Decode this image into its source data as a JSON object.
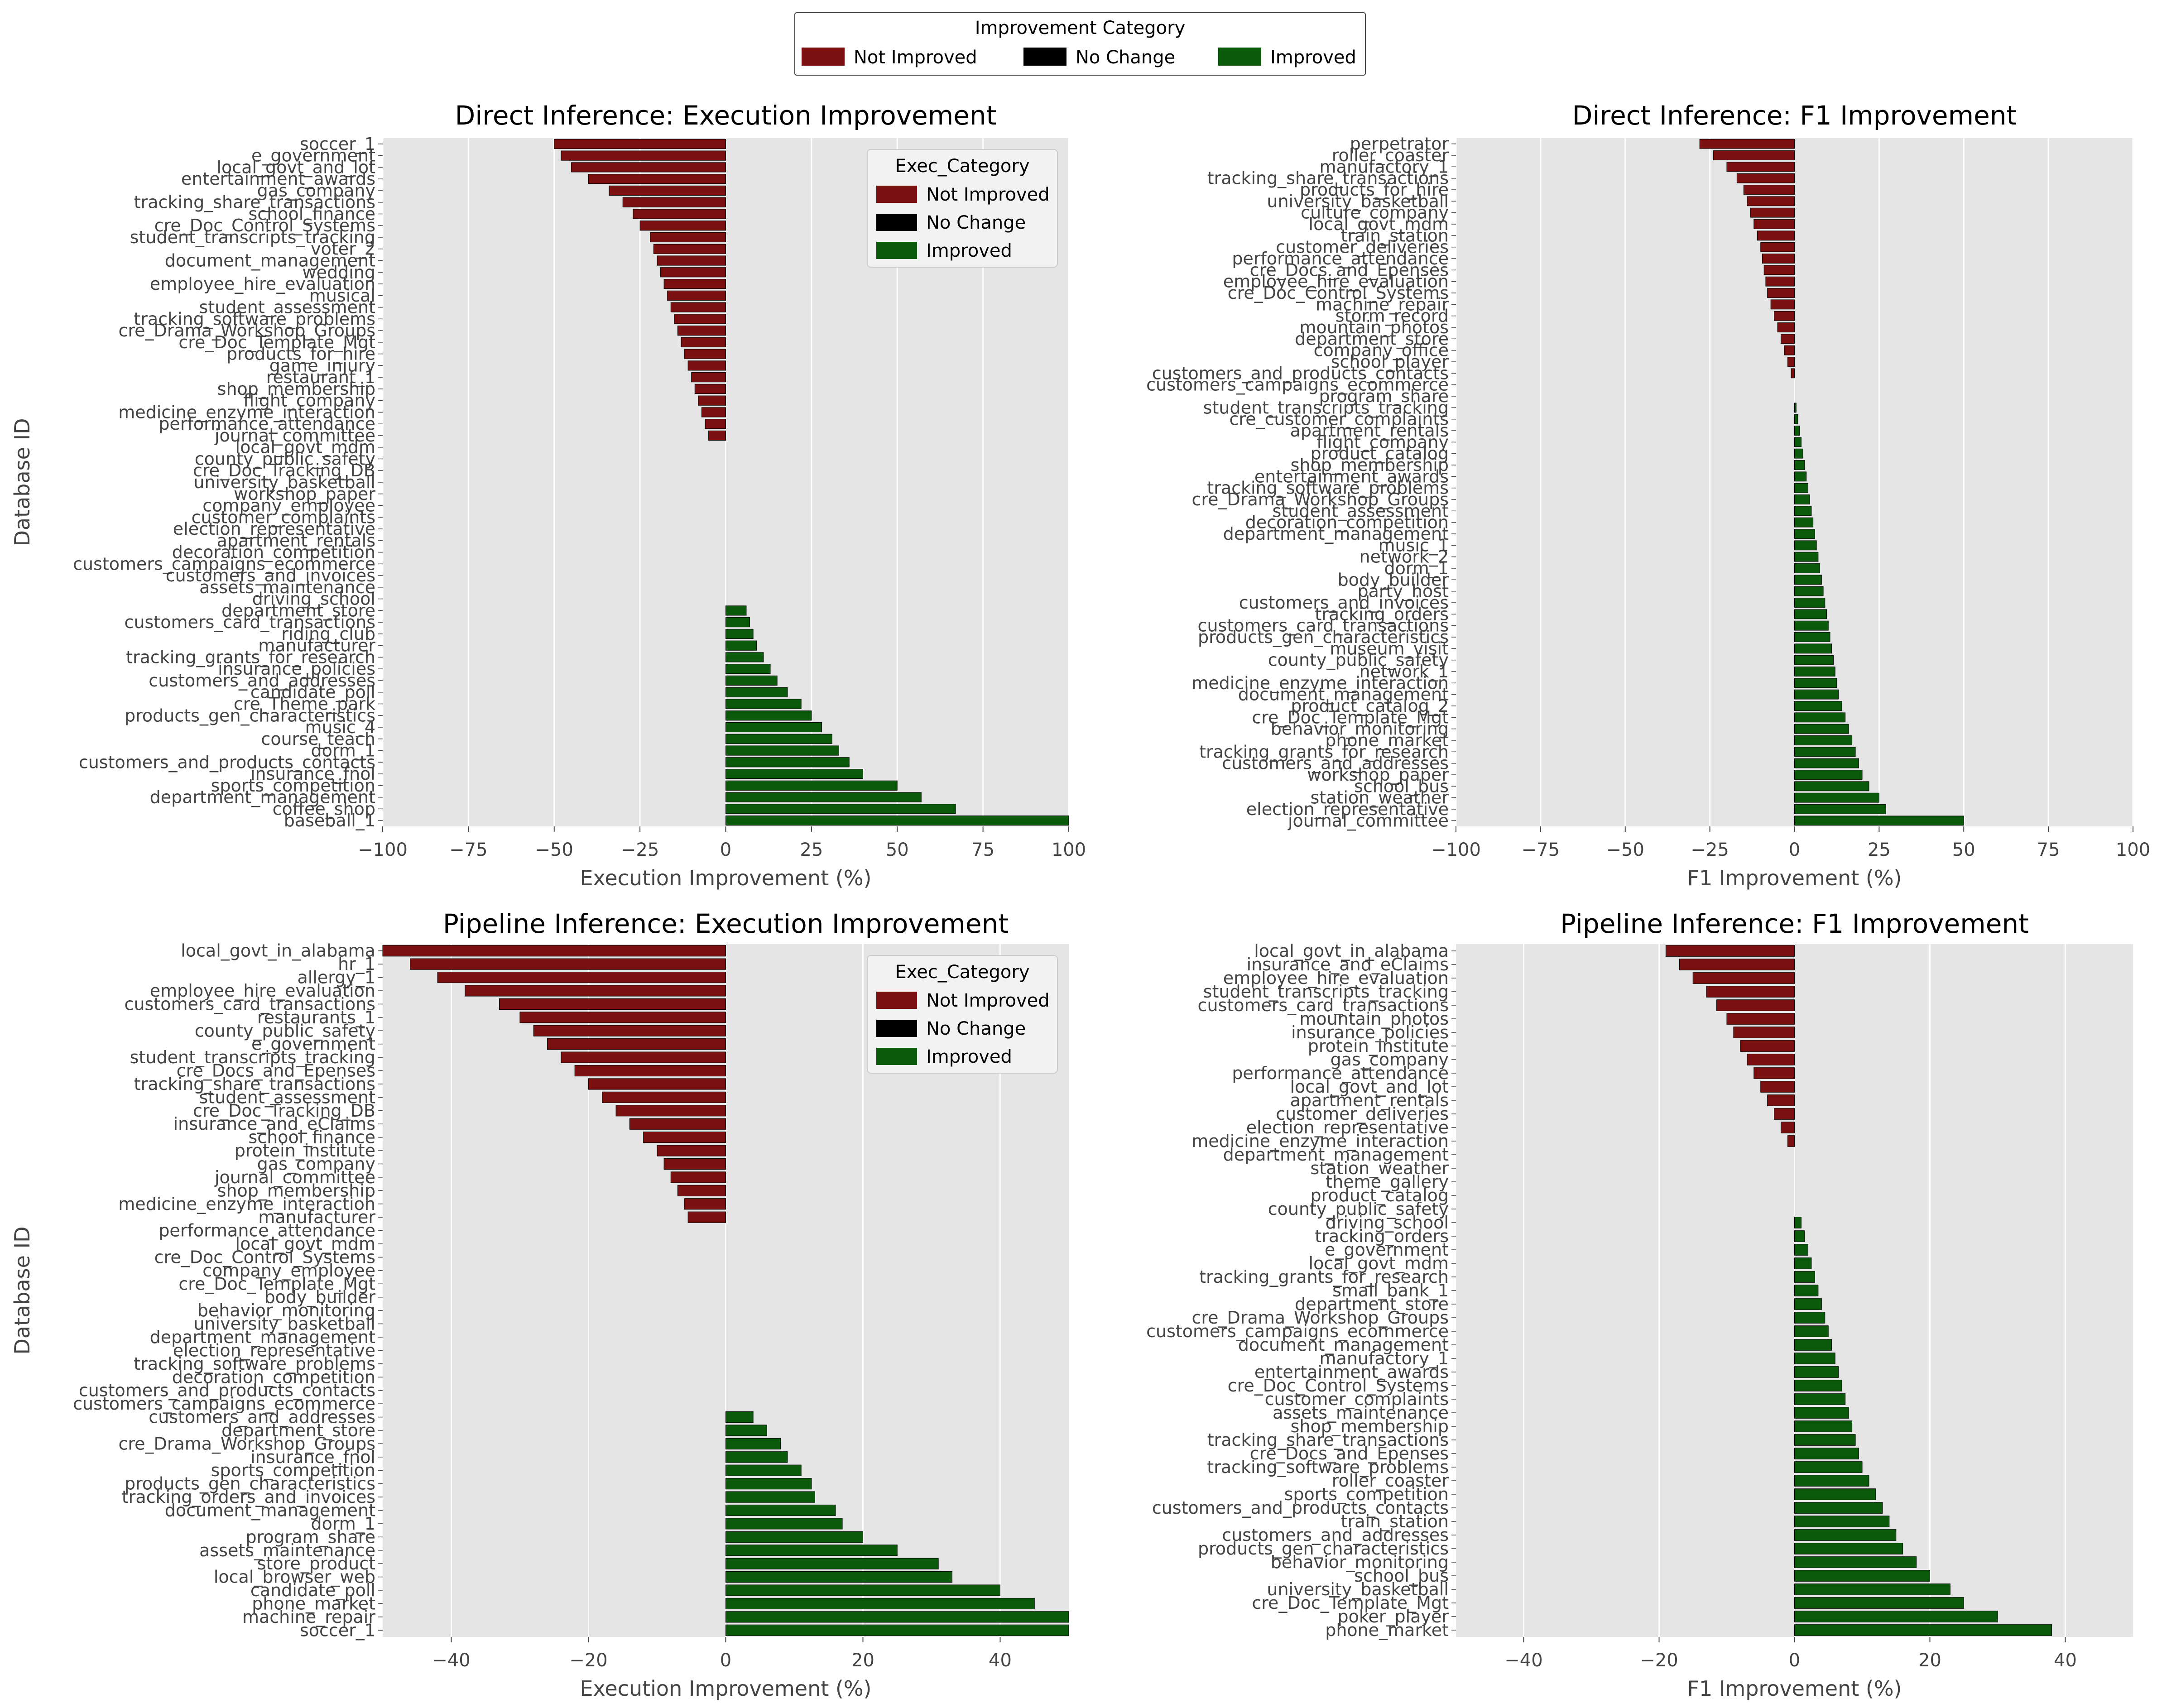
{
  "legend": {
    "title": "Improvement Category",
    "entries": [
      {
        "label": "Not Improved",
        "color": "#7a1010"
      },
      {
        "label": "No Change",
        "color": "#000000"
      },
      {
        "label": "Improved",
        "color": "#0b5a0b"
      }
    ]
  },
  "inset_legend": {
    "title": "Exec_Category",
    "entries": [
      {
        "label": "Not Improved",
        "color": "#7a1010"
      },
      {
        "label": "No Change",
        "color": "#000000"
      },
      {
        "label": "Improved",
        "color": "#0b5a0b"
      }
    ]
  },
  "colors": {
    "not_improved": "#7a1010",
    "no_change": "#000000",
    "improved": "#0b5a0b",
    "plot_bg": "#e5e5e5",
    "grid": "#ffffff",
    "text": "#444444"
  },
  "chart_data": [
    {
      "type": "bar",
      "orientation": "horizontal",
      "title": "Direct Inference: Execution Improvement",
      "xlabel": "Execution Improvement (%)",
      "ylabel": "Database ID",
      "xlim": [
        -100,
        100
      ],
      "xticks": [
        "−100",
        "−75",
        "−50",
        "−25",
        "0",
        "25",
        "50",
        "75",
        "100"
      ],
      "xtick_values": [
        -100,
        -75,
        -50,
        -25,
        0,
        25,
        50,
        75,
        100
      ],
      "grid": true,
      "legend": "inset top-right",
      "categories": [
        "soccer_1",
        "e_government",
        "local_govt_and_lot",
        "entertainment_awards",
        "gas_company",
        "tracking_share_transactions",
        "school_finance",
        "cre_Doc_Control_Systems",
        "student_transcripts_tracking",
        "voter_2",
        "document_management",
        "wedding",
        "employee_hire_evaluation",
        "musical",
        "student_assessment",
        "tracking_software_problems",
        "cre_Drama_Workshop_Groups",
        "cre_Doc_Template_Mgt",
        "products_for_hire",
        "game_injury",
        "restaurant_1",
        "shop_membership",
        "flight_company",
        "medicine_enzyme_interaction",
        "performance_attendance",
        "journal_committee",
        "local_govt_mdm",
        "county_public_safety",
        "cre_Doc_Tracking_DB",
        "university_basketball",
        "workshop_paper",
        "company_employee",
        "customer_complaints",
        "election_representative",
        "apartment_rentals",
        "decoration_competition",
        "customers_campaigns_ecommerce",
        "customers_and_invoices",
        "assets_maintenance",
        "driving_school",
        "department_store",
        "customers_card_transactions",
        "riding_club",
        "manufacturer",
        "tracking_grants_for_research",
        "insurance_policies",
        "customers_and_addresses",
        "candidate_poll",
        "cre_Theme_park",
        "products_gen_characteristics",
        "music_4",
        "course_teach",
        "dorm_1",
        "customers_and_products_contacts",
        "insurance_fnol",
        "sports_competition",
        "department_management",
        "coffee_shop",
        "baseball_1"
      ],
      "values": [
        -50,
        -48,
        -45,
        -40,
        -34,
        -30,
        -27,
        -25,
        -22,
        -21,
        -20,
        -19,
        -18,
        -17,
        -16,
        -15,
        -14,
        -13,
        -12,
        -11,
        -10,
        -9,
        -8,
        -7,
        -6,
        -5,
        0,
        0,
        0,
        0,
        0,
        0,
        0,
        0,
        0,
        0,
        0,
        0,
        0,
        0,
        6,
        7,
        8,
        9,
        11,
        13,
        15,
        18,
        22,
        25,
        28,
        31,
        33,
        36,
        40,
        50,
        57,
        67,
        100
      ]
    },
    {
      "type": "bar",
      "orientation": "horizontal",
      "title": "Direct Inference: F1 Improvement",
      "xlabel": "F1 Improvement (%)",
      "ylabel": "",
      "xlim": [
        -100,
        100
      ],
      "xticks": [
        "−100",
        "−75",
        "−50",
        "−25",
        "0",
        "25",
        "50",
        "75",
        "100"
      ],
      "xtick_values": [
        -100,
        -75,
        -50,
        -25,
        0,
        25,
        50,
        75,
        100
      ],
      "grid": true,
      "legend": "none",
      "categories": [
        "perpetrator",
        "roller_coaster",
        "manufactory_1",
        "tracking_share_transactions",
        "products_for_hire",
        "university_basketball",
        "culture_company",
        "local_govt_mdm",
        "train_station",
        "customer_deliveries",
        "performance_attendance",
        "cre_Docs_and_Epenses",
        "employee_hire_evaluation",
        "cre_Doc_Control_Systems",
        "machine_repair",
        "storm_record",
        "mountain_photos",
        "department_store",
        "company_office",
        "school_player",
        "customers_and_products_contacts",
        "customers_campaigns_ecommerce",
        "program_share",
        "student_transcripts_tracking",
        "cre_customer_complaints",
        "apartment_rentals",
        "flight_company",
        "product_catalog",
        "shop_membership",
        "entertainment_awards",
        "tracking_software_problems",
        "cre_Drama_Workshop_Groups",
        "student_assessment",
        "decoration_competition",
        "department_management",
        "music_1",
        "network_2",
        "dorm_1",
        "body_builder",
        "party_host",
        "customers_and_invoices",
        "tracking_orders",
        "customers_card_transactions",
        "products_gen_characteristics",
        "museum_visit",
        "county_public_safety",
        "network_1",
        "medicine_enzyme_interaction",
        "document_management",
        "product_catalog_2",
        "cre_Doc_Template_Mgt",
        "behavior_monitoring",
        "phone_market",
        "tracking_grants_for_research",
        "customers_and_addresses",
        "workshop_paper",
        "school_bus",
        "station_weather",
        "election_representative",
        "journal_committee"
      ],
      "values": [
        -28,
        -24,
        -20,
        -17,
        -15,
        -14,
        -13,
        -12,
        -11,
        -10,
        -9.5,
        -9,
        -8.5,
        -8,
        -7,
        -6,
        -5,
        -4,
        -3,
        -2,
        -1,
        0,
        0,
        0.5,
        1,
        1.5,
        2,
        2.5,
        3,
        3.5,
        4,
        4.5,
        5,
        5.5,
        6,
        6.5,
        7,
        7.5,
        8,
        8.5,
        9,
        9.5,
        10,
        10.5,
        11,
        11.5,
        12,
        12.5,
        13,
        14,
        15,
        16,
        17,
        18,
        19,
        20,
        22,
        25,
        27,
        50
      ]
    },
    {
      "type": "bar",
      "orientation": "horizontal",
      "title": "Pipeline Inference: Execution Improvement",
      "xlabel": "Execution Improvement (%)",
      "ylabel": "Database ID",
      "xlim": [
        -50,
        50
      ],
      "xticks": [
        "−40",
        "−20",
        "0",
        "20",
        "40"
      ],
      "xtick_values": [
        -40,
        -20,
        0,
        20,
        40
      ],
      "grid": true,
      "legend": "inset top-right",
      "categories": [
        "local_govt_in_alabama",
        "hr_1",
        "allergy_1",
        "employee_hire_evaluation",
        "customers_card_transactions",
        "restaurants_1",
        "county_public_safety",
        "e_government",
        "student_transcripts_tracking",
        "cre_Docs_and_Epenses",
        "tracking_share_transactions",
        "student_assessment",
        "cre_Doc_Tracking_DB",
        "insurance_and_eClaims",
        "school_finance",
        "protein_institute",
        "gas_company",
        "journal_committee",
        "shop_membership",
        "medicine_enzyme_interaction",
        "manufacturer",
        "performance_attendance",
        "local_govt_mdm",
        "cre_Doc_Control_Systems",
        "company_employee",
        "cre_Doc_Template_Mgt",
        "body_builder",
        "behavior_monitoring",
        "university_basketball",
        "department_management",
        "election_representative",
        "tracking_software_problems",
        "decoration_competition",
        "customers_and_products_contacts",
        "customers_campaigns_ecommerce",
        "customers_and_addresses",
        "department_store",
        "cre_Drama_Workshop_Groups",
        "insurance_fnol",
        "sports_competition",
        "products_gen_characteristics",
        "tracking_orders_and_invoices",
        "document_management",
        "dorm_1",
        "program_share",
        "assets_maintenance",
        "store_product",
        "local_browser_web",
        "candidate_poll",
        "phone_market",
        "machine_repair",
        "soccer_1"
      ],
      "values": [
        -50,
        -46,
        -42,
        -38,
        -33,
        -30,
        -28,
        -26,
        -24,
        -22,
        -20,
        -18,
        -16,
        -14,
        -12,
        -10,
        -9,
        -8,
        -7,
        -6,
        -5.5,
        0,
        0,
        0,
        0,
        0,
        0,
        0,
        0,
        0,
        0,
        0,
        0,
        0,
        0,
        4,
        6,
        8,
        9,
        11,
        12.5,
        13,
        16,
        17,
        20,
        25,
        31,
        33,
        40,
        45,
        50,
        50
      ]
    },
    {
      "type": "bar",
      "orientation": "horizontal",
      "title": "Pipeline Inference: F1 Improvement",
      "xlabel": "F1 Improvement (%)",
      "ylabel": "",
      "xlim": [
        -50,
        50
      ],
      "xticks": [
        "−40",
        "−20",
        "0",
        "20",
        "40"
      ],
      "xtick_values": [
        -40,
        -20,
        0,
        20,
        40
      ],
      "grid": true,
      "legend": "none",
      "categories": [
        "local_govt_in_alabama",
        "insurance_and_eClaims",
        "employee_hire_evaluation",
        "student_transcripts_tracking",
        "customers_card_transactions",
        "mountain_photos",
        "insurance_policies",
        "protein_institute",
        "gas_company",
        "performance_attendance",
        "local_govt_and_lot",
        "apartment_rentals",
        "customer_deliveries",
        "election_representative",
        "medicine_enzyme_interaction",
        "department_management",
        "station_weather",
        "theme_gallery",
        "product_catalog",
        "county_public_safety",
        "driving_school",
        "tracking_orders",
        "e_government",
        "local_govt_mdm",
        "tracking_grants_for_research",
        "small_bank_1",
        "department_store",
        "cre_Drama_Workshop_Groups",
        "customers_campaigns_ecommerce",
        "document_management",
        "manufactory_1",
        "entertainment_awards",
        "cre_Doc_Control_Systems",
        "customer_complaints",
        "assets_maintenance",
        "shop_membership",
        "tracking_share_transactions",
        "cre_Docs_and_Epenses",
        "tracking_software_problems",
        "roller_coaster",
        "sports_competition",
        "customers_and_products_contacts",
        "train_station",
        "customers_and_addresses",
        "products_gen_characteristics",
        "behavior_monitoring",
        "school_bus",
        "university_basketball",
        "cre_Doc_Template_Mgt",
        "poker_player",
        "phone_market"
      ],
      "values": [
        -19,
        -17,
        -15,
        -13,
        -11.5,
        -10,
        -9,
        -8,
        -7,
        -6,
        -5,
        -4,
        -3,
        -2,
        -1,
        0,
        0,
        0,
        0,
        0,
        1,
        1.5,
        2,
        2.5,
        3,
        3.5,
        4,
        4.5,
        5,
        5.5,
        6,
        6.5,
        7,
        7.5,
        8,
        8.5,
        9,
        9.5,
        10,
        11,
        12,
        13,
        14,
        15,
        16,
        18,
        20,
        23,
        25,
        30,
        38
      ]
    }
  ]
}
